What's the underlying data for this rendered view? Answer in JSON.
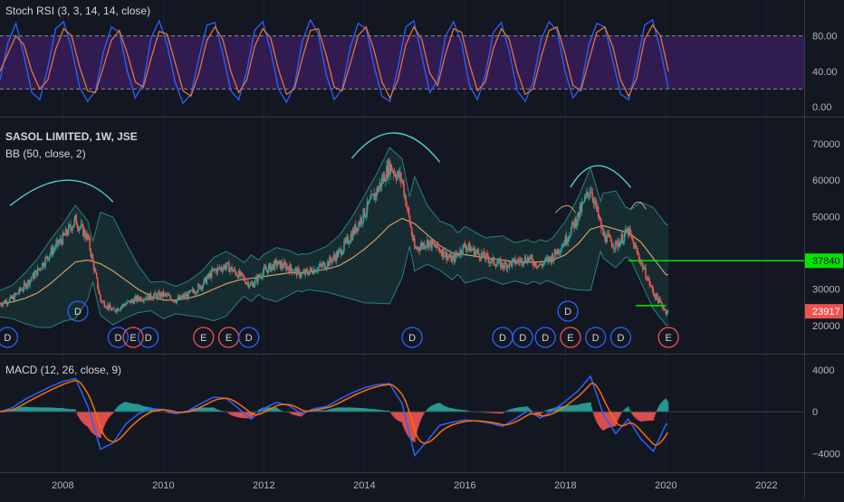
{
  "colors": {
    "background": "#131722",
    "grid": "#1f2433",
    "axis_text": "#b2b5be",
    "legend_text": "#d1d4dc",
    "candle_up": "#26a69a",
    "candle_down": "#ef5350",
    "bb_basis": "#d29d66",
    "bb_band": "#2a7f7f",
    "bb_fill": "#1b3a3a",
    "stoch_k": "#2962ff",
    "stoch_d": "#e0733d",
    "stoch_band_fill": "#3c1f63",
    "macd_line": "#2962ff",
    "signal_line": "#ff6d00",
    "hist_pos": "#26a69a",
    "hist_neg": "#ef5350",
    "hline_green": "#00e600",
    "dividend_badge": "#2962ff",
    "earnings_badge": "#ef5350",
    "price_tag": "#ef5350",
    "arc": "#4dd0c4"
  },
  "stoch_rsi": {
    "legend": "Stoch RSI (3, 3, 14, 14, close)",
    "ticks": [
      "80.00",
      "40.00",
      "0.00"
    ],
    "upper_band": 80,
    "lower_band": 20,
    "k_values": [
      30,
      72,
      94,
      58,
      16,
      8,
      44,
      88,
      96,
      66,
      22,
      6,
      18,
      62,
      90,
      84,
      40,
      10,
      26,
      78,
      97,
      70,
      28,
      4,
      14,
      55,
      92,
      95,
      60,
      18,
      8,
      40,
      86,
      96,
      64,
      20,
      5,
      24,
      74,
      98,
      82,
      36,
      8,
      20,
      66,
      94,
      88,
      46,
      12,
      6,
      44,
      90,
      97,
      58,
      16,
      30,
      80,
      96,
      72,
      24,
      8,
      36,
      84,
      95,
      62,
      18,
      6,
      28,
      76,
      96,
      86,
      40,
      10,
      22,
      70,
      94,
      90,
      52,
      14,
      8,
      46,
      92,
      98,
      64,
      20
    ],
    "d_values": [
      40,
      60,
      80,
      70,
      40,
      20,
      30,
      65,
      88,
      80,
      45,
      18,
      16,
      45,
      75,
      86,
      60,
      28,
      22,
      55,
      85,
      82,
      50,
      18,
      12,
      38,
      75,
      90,
      76,
      40,
      16,
      30,
      68,
      88,
      78,
      42,
      14,
      20,
      55,
      86,
      88,
      58,
      22,
      18,
      48,
      80,
      90,
      64,
      28,
      10,
      30,
      70,
      90,
      76,
      38,
      24,
      60,
      88,
      84,
      48,
      18,
      28,
      66,
      88,
      76,
      40,
      14,
      20,
      56,
      86,
      90,
      60,
      24,
      18,
      52,
      84,
      90,
      68,
      30,
      12,
      32,
      76,
      92,
      80,
      40
    ]
  },
  "price_panel": {
    "title": "SASOL LIMITED, 1W, JSE",
    "bb_legend": "BB (50, close, 2)",
    "ticks": [
      "70000",
      "60000",
      "50000",
      "40000",
      "30000",
      "20000"
    ],
    "tick_values": [
      70000,
      60000,
      50000,
      40000,
      30000,
      20000
    ],
    "ylim": [
      14500,
      73000
    ],
    "hline_label": "37840",
    "hline_value": 37840,
    "last_price_label": "23917",
    "last_price": 23917,
    "support_value": 25500,
    "dividend_label": "D",
    "earnings_label": "E",
    "events": [
      {
        "t": 2006.9,
        "k": "D",
        "row": 0
      },
      {
        "t": 2008.3,
        "k": "D",
        "row": 1
      },
      {
        "t": 2009.1,
        "k": "D",
        "row": 0
      },
      {
        "t": 2009.4,
        "k": "E",
        "row": 0
      },
      {
        "t": 2009.7,
        "k": "D",
        "row": 0
      },
      {
        "t": 2010.8,
        "k": "E",
        "row": 0
      },
      {
        "t": 2011.3,
        "k": "E",
        "row": 0
      },
      {
        "t": 2011.7,
        "k": "D",
        "row": 0
      },
      {
        "t": 2014.95,
        "k": "D",
        "row": 0
      },
      {
        "t": 2016.75,
        "k": "D",
        "row": 0
      },
      {
        "t": 2017.15,
        "k": "D",
        "row": 0
      },
      {
        "t": 2017.6,
        "k": "D",
        "row": 0
      },
      {
        "t": 2018.05,
        "k": "D",
        "row": 1
      },
      {
        "t": 2018.1,
        "k": "E",
        "row": 0
      },
      {
        "t": 2018.6,
        "k": "D",
        "row": 0
      },
      {
        "t": 2019.1,
        "k": "D",
        "row": 0
      },
      {
        "t": 2020.05,
        "k": "E",
        "row": 0
      }
    ]
  },
  "macd": {
    "legend": "MACD (12, 26, close, 9)",
    "ticks": [
      "4000",
      "0",
      "−4000"
    ],
    "tick_values": [
      4000,
      0,
      -4000
    ],
    "ylim": [
      -5800,
      5400
    ]
  },
  "time_axis": {
    "labels": [
      "2008",
      "2010",
      "2012",
      "2014",
      "2016",
      "2018",
      "2020",
      "2022"
    ],
    "years": [
      2008,
      2010,
      2012,
      2014,
      2016,
      2018,
      2020,
      2022
    ],
    "xlim": [
      2006.75,
      2022.75
    ]
  },
  "chart_data": {
    "type": "line",
    "title": "SASOL LIMITED, 1W, JSE",
    "x": [
      2006.75,
      2007.0,
      2007.25,
      2007.5,
      2007.75,
      2008.0,
      2008.25,
      2008.5,
      2008.75,
      2009.0,
      2009.25,
      2009.5,
      2009.75,
      2010.0,
      2010.25,
      2010.5,
      2010.75,
      2011.0,
      2011.25,
      2011.5,
      2011.75,
      2012.0,
      2012.25,
      2012.5,
      2012.75,
      2013.0,
      2013.25,
      2013.5,
      2013.75,
      2014.0,
      2014.25,
      2014.5,
      2014.75,
      2015.0,
      2015.25,
      2015.5,
      2015.75,
      2016.0,
      2016.25,
      2016.5,
      2016.75,
      2017.0,
      2017.25,
      2017.5,
      2017.75,
      2018.0,
      2018.25,
      2018.5,
      2018.75,
      2019.0,
      2019.25,
      2019.5,
      2019.75,
      2020.0
    ],
    "series": [
      {
        "name": "SASOL LIMITED, 1W, JSE",
        "values": [
          26000,
          27500,
          31000,
          35000,
          40000,
          44000,
          49000,
          44000,
          27000,
          24000,
          26000,
          27500,
          28000,
          28500,
          27000,
          28500,
          31000,
          35000,
          36500,
          34000,
          31000,
          35000,
          37000,
          36000,
          34000,
          35500,
          37000,
          40000,
          45000,
          51000,
          57000,
          64000,
          60000,
          41000,
          43000,
          41000,
          38000,
          42000,
          40000,
          38000,
          36500,
          37500,
          38500,
          36500,
          39000,
          43500,
          50000,
          58000,
          45000,
          42000,
          46000,
          37500,
          29000,
          23917
        ]
      },
      {
        "name": "BB (50, close, 2)",
        "values": [
          26000,
          26500,
          27500,
          29000,
          31500,
          34500,
          37500,
          38000,
          37000,
          35000,
          32500,
          30000,
          28000,
          27000,
          27000,
          27500,
          28500,
          30000,
          31500,
          32500,
          33000,
          33500,
          34000,
          34500,
          34500,
          35000,
          35500,
          36500,
          38500,
          41000,
          44000,
          47500,
          49500,
          48000,
          45000,
          42000,
          40000,
          39500,
          39000,
          38500,
          38000,
          37500,
          37500,
          37500,
          38000,
          39500,
          42500,
          46500,
          47500,
          46500,
          45500,
          43000,
          38500,
          34000
        ]
      },
      {
        "name": "MACD (12, 26, close, 9)",
        "values": [
          0,
          400,
          1200,
          1800,
          2400,
          2900,
          3200,
          500,
          -3600,
          -3000,
          -1200,
          -200,
          300,
          200,
          -200,
          100,
          800,
          1400,
          1300,
          300,
          -700,
          300,
          900,
          600,
          -200,
          300,
          500,
          1200,
          1800,
          2300,
          2600,
          2700,
          800,
          -4200,
          -2800,
          -1300,
          -1000,
          -800,
          -900,
          -1100,
          -1400,
          -700,
          100,
          -600,
          100,
          1000,
          2000,
          3400,
          -200,
          -2100,
          -700,
          -2600,
          -3800,
          -1200
        ]
      }
    ],
    "ylim": [
      14500,
      73000
    ]
  }
}
